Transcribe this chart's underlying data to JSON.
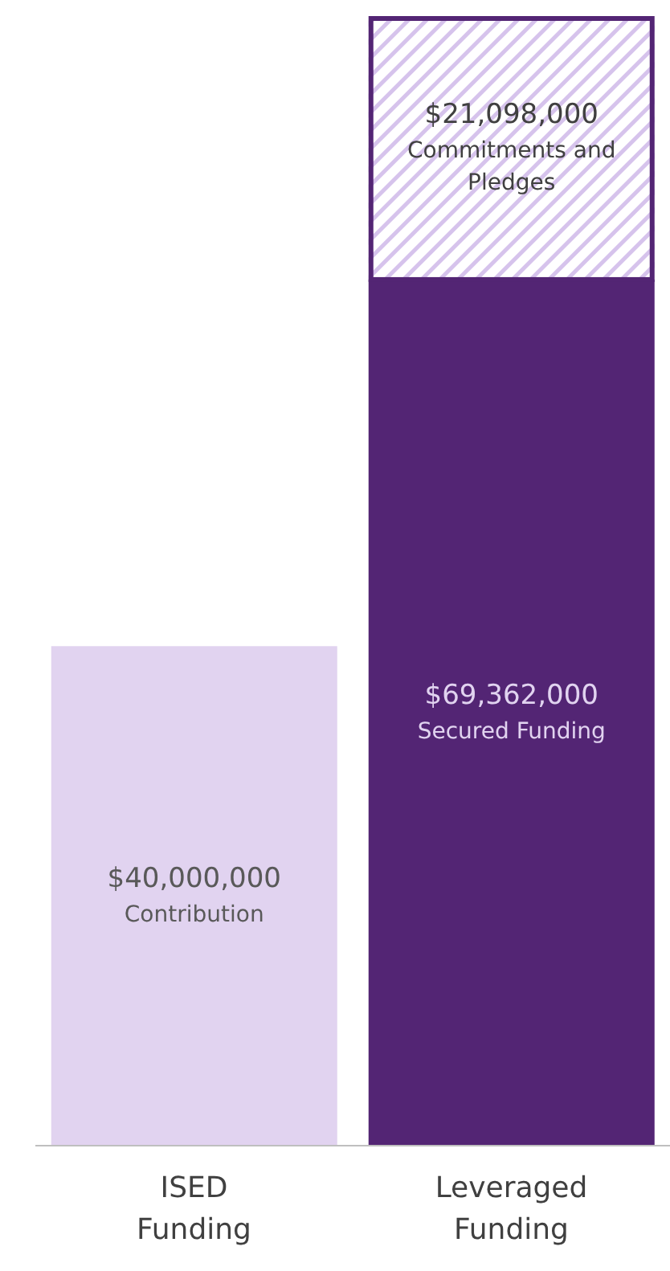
{
  "chart_data": {
    "type": "bar",
    "stacked": true,
    "categories": [
      "ISED Funding",
      "Leveraged Funding"
    ],
    "series": [
      {
        "name": "Contribution",
        "color": "#e1d3f0",
        "values": [
          40000000,
          null
        ],
        "value_labels": [
          "$40,000,000",
          null
        ]
      },
      {
        "name": "Secured Funding",
        "color": "#532574",
        "values": [
          null,
          69362000
        ],
        "value_labels": [
          null,
          "$69,362,000"
        ]
      },
      {
        "name": "Commitments and Pledges",
        "color": "#d6c3ec",
        "values": [
          null,
          21098000
        ],
        "value_labels": [
          null,
          "$21,098,000"
        ]
      }
    ],
    "grid": false,
    "legend": false
  }
}
